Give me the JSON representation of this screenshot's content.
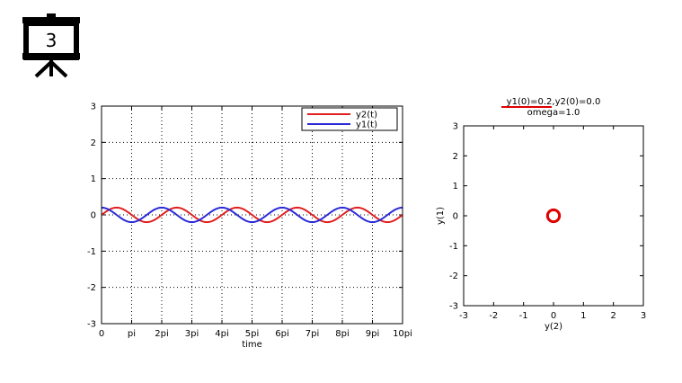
{
  "slide": {
    "number": "3",
    "icon": "presentation-board-icon"
  },
  "colors": {
    "y1": "#2a2ad8",
    "y2": "#e02020",
    "axis": "#000000",
    "grid": "#000000",
    "phase_point": "#e00000"
  },
  "chart_data": [
    {
      "type": "line",
      "xlabel": "time",
      "ylabel": "",
      "xlim": [
        0,
        31.4159
      ],
      "ylim": [
        -3,
        3
      ],
      "x_ticks": [
        {
          "label": "0",
          "value": 0
        },
        {
          "label": "pi",
          "value": 3.14159
        },
        {
          "label": "2pi",
          "value": 6.28319
        },
        {
          "label": "3pi",
          "value": 9.42478
        },
        {
          "label": "4pi",
          "value": 12.5664
        },
        {
          "label": "5pi",
          "value": 15.708
        },
        {
          "label": "6pi",
          "value": 18.8496
        },
        {
          "label": "7pi",
          "value": 21.9911
        },
        {
          "label": "8pi",
          "value": 25.1327
        },
        {
          "label": "9pi",
          "value": 28.2743
        },
        {
          "label": "10pi",
          "value": 31.4159
        }
      ],
      "y_ticks": [
        {
          "label": "3",
          "value": 3
        },
        {
          "label": "2",
          "value": 2
        },
        {
          "label": "1",
          "value": 1
        },
        {
          "label": "0",
          "value": 0
        },
        {
          "label": "-1",
          "value": -1
        },
        {
          "label": "-2",
          "value": -2
        },
        {
          "label": "-3",
          "value": -3
        }
      ],
      "grid": true,
      "legend_position": "top-right",
      "series": [
        {
          "name": "y2(t)",
          "color": "#e02020",
          "function": "0.2*sin(t)"
        },
        {
          "name": "y1(t)",
          "color": "#2a2ad8",
          "function": "0.2*cos(t)"
        }
      ]
    },
    {
      "type": "scatter",
      "title_line1": "y1(0)=0.2,y2(0)=0.0",
      "title_line2": "omega=1.0",
      "xlabel": "y(2)",
      "ylabel": "y(1)",
      "xlim": [
        -3,
        3
      ],
      "ylim": [
        -3,
        3
      ],
      "x_ticks": [
        "-3",
        "-2",
        "-1",
        "0",
        "1",
        "2",
        "3"
      ],
      "y_ticks": [
        "3",
        "2",
        "1",
        "0",
        "-1",
        "-2",
        "-3"
      ],
      "grid": false,
      "orbit": {
        "center": [
          0,
          0
        ],
        "radius": 0.2
      }
    }
  ]
}
